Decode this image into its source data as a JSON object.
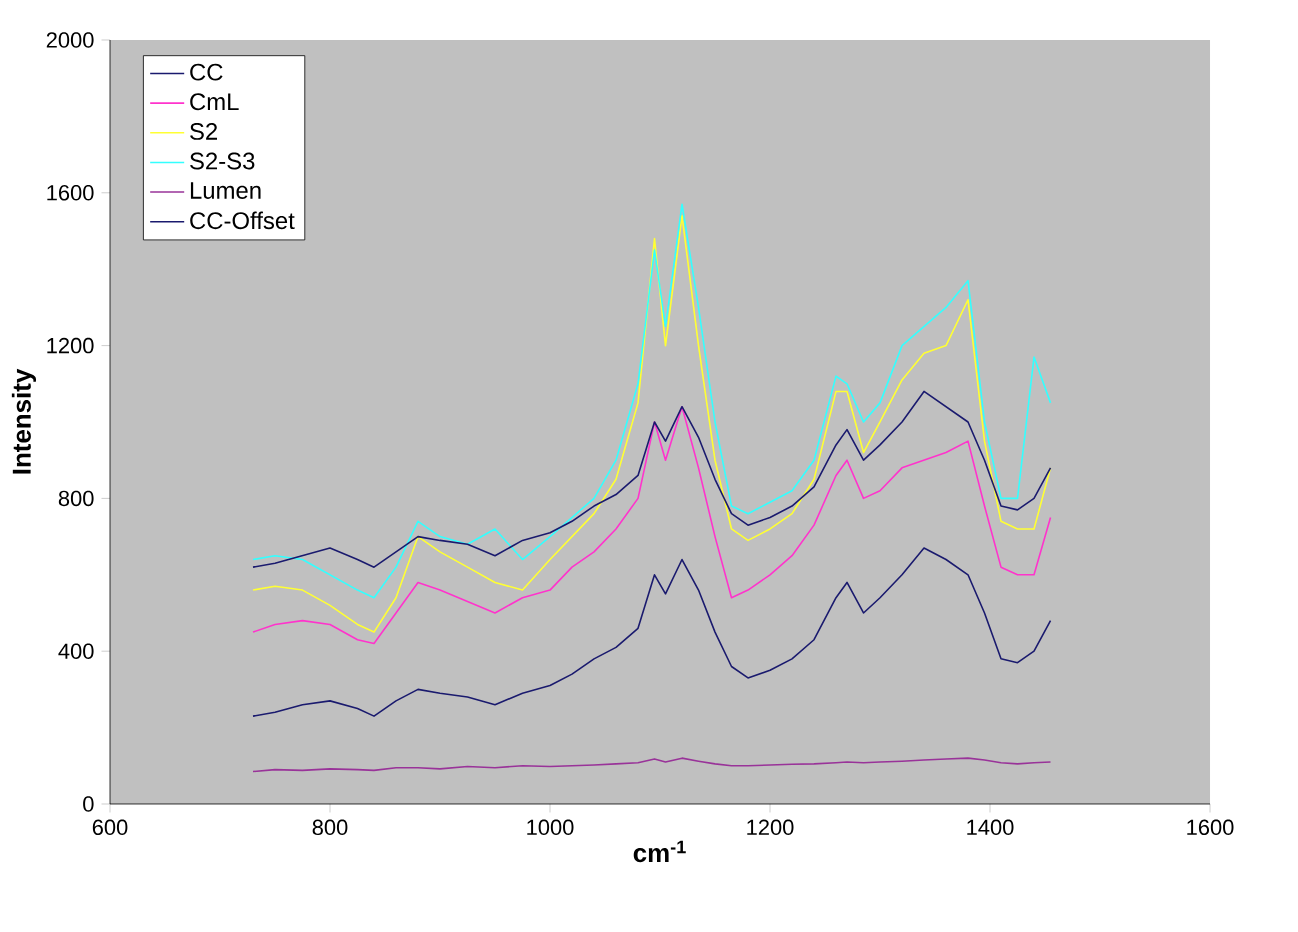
{
  "chart_data": {
    "type": "line",
    "xlabel": "cm$^{-1}$",
    "ylabel": "Intensity",
    "x": [
      730,
      750,
      775,
      800,
      825,
      840,
      860,
      880,
      900,
      925,
      950,
      975,
      1000,
      1020,
      1040,
      1060,
      1080,
      1095,
      1105,
      1120,
      1135,
      1150,
      1165,
      1180,
      1200,
      1220,
      1240,
      1260,
      1270,
      1285,
      1300,
      1320,
      1340,
      1360,
      1380,
      1395,
      1410,
      1425,
      1440,
      1455
    ],
    "xlim": [
      600,
      1600
    ],
    "ylim": [
      0,
      2000
    ],
    "xticks": [
      600,
      800,
      1000,
      1200,
      1400,
      1600
    ],
    "yticks": [
      0,
      400,
      800,
      1200,
      1600,
      2000
    ],
    "legend": "top left",
    "series": [
      {
        "name": "CC",
        "color": "#1a1a6e",
        "values": [
          230,
          240,
          260,
          270,
          250,
          230,
          270,
          300,
          290,
          280,
          260,
          290,
          310,
          340,
          380,
          410,
          460,
          600,
          550,
          640,
          560,
          450,
          360,
          330,
          350,
          380,
          430,
          540,
          580,
          500,
          540,
          600,
          670,
          640,
          600,
          500,
          380,
          370,
          400,
          480
        ]
      },
      {
        "name": "CmL",
        "color": "#ff33cc",
        "values": [
          450,
          470,
          480,
          470,
          430,
          420,
          500,
          580,
          560,
          530,
          500,
          540,
          560,
          620,
          660,
          720,
          800,
          1000,
          900,
          1040,
          880,
          700,
          540,
          560,
          600,
          650,
          730,
          860,
          900,
          800,
          820,
          880,
          900,
          920,
          950,
          780,
          620,
          600,
          600,
          750
        ]
      },
      {
        "name": "S2",
        "color": "#ffff33",
        "values": [
          560,
          570,
          560,
          520,
          470,
          450,
          540,
          700,
          660,
          620,
          580,
          560,
          640,
          700,
          760,
          850,
          1050,
          1480,
          1200,
          1540,
          1200,
          900,
          720,
          690,
          720,
          760,
          850,
          1080,
          1080,
          920,
          1000,
          1110,
          1180,
          1200,
          1320,
          950,
          740,
          720,
          720,
          880
        ]
      },
      {
        "name": "S2-S3",
        "color": "#33ffff",
        "values": [
          640,
          650,
          640,
          600,
          560,
          540,
          620,
          740,
          700,
          680,
          720,
          640,
          700,
          750,
          800,
          900,
          1100,
          1450,
          1250,
          1570,
          1300,
          1000,
          780,
          760,
          790,
          820,
          900,
          1120,
          1100,
          1000,
          1050,
          1200,
          1250,
          1300,
          1370,
          1000,
          800,
          800,
          1170,
          1050
        ]
      },
      {
        "name": "Lumen",
        "color": "#993399",
        "values": [
          85,
          90,
          88,
          92,
          90,
          88,
          95,
          95,
          92,
          98,
          95,
          100,
          98,
          100,
          102,
          105,
          108,
          118,
          110,
          120,
          112,
          105,
          100,
          100,
          102,
          104,
          105,
          108,
          110,
          108,
          110,
          112,
          115,
          118,
          120,
          115,
          108,
          105,
          108,
          110
        ]
      },
      {
        "name": "CC-Offset",
        "color": "#1a1a6e",
        "values": [
          620,
          630,
          650,
          670,
          640,
          620,
          660,
          700,
          690,
          680,
          650,
          690,
          710,
          740,
          780,
          810,
          860,
          1000,
          950,
          1040,
          960,
          850,
          760,
          730,
          750,
          780,
          830,
          940,
          980,
          900,
          940,
          1000,
          1080,
          1040,
          1000,
          900,
          780,
          770,
          800,
          880
        ]
      }
    ]
  }
}
